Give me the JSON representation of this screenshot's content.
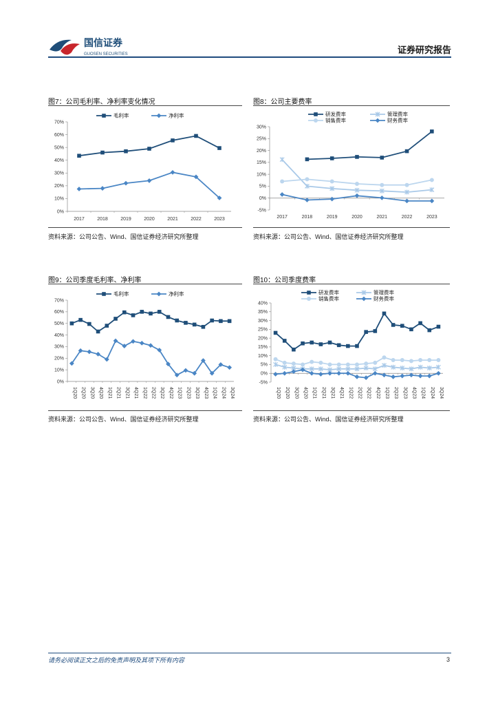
{
  "header": {
    "logo_cn": "国信证券",
    "logo_en": "GUOSEN SECURITIES",
    "report_type": "证券研究报告"
  },
  "colors": {
    "dark": "#1f4e79",
    "mid": "#4a86c5",
    "light": "#a9c9e8",
    "lighter": "#bcd6ee"
  },
  "figures": [
    {
      "title": "图7：公司毛利率、净利率变化情况",
      "source": "资料来源：公司公告、Wind、国信证券经济研究所整理",
      "chart_data": {
        "type": "line",
        "x": [
          "2017",
          "2018",
          "2019",
          "2020",
          "2021",
          "2022",
          "2023"
        ],
        "y_ticks": [
          "0%",
          "10%",
          "20%",
          "30%",
          "40%",
          "50%",
          "60%",
          "70%"
        ],
        "ylim": [
          0,
          70
        ],
        "series": [
          {
            "name": "毛利率",
            "values": [
              43.5,
              46,
              47,
              49,
              55.5,
              59,
              49.5
            ],
            "color": "#1f4e79",
            "marker": "square"
          },
          {
            "name": "净利率",
            "values": [
              17.5,
              18,
              22,
              24,
              30.5,
              27,
              10.5
            ],
            "color": "#4a86c5",
            "marker": "diamond"
          }
        ]
      }
    },
    {
      "title": "图8：公司主要费率",
      "source": "资料来源：公司公告、Wind、国信证券经济研究所整理",
      "chart_data": {
        "type": "line",
        "x": [
          "2017",
          "2018",
          "2019",
          "2020",
          "2021",
          "2022",
          "2023"
        ],
        "y_ticks": [
          "-5%",
          "0%",
          "5%",
          "10%",
          "15%",
          "20%",
          "25%",
          "30%"
        ],
        "ylim": [
          -5,
          30
        ],
        "series": [
          {
            "name": "研发费率",
            "values": [
              null,
              16.3,
              16.7,
              17.3,
              17,
              19.7,
              28
            ],
            "color": "#1f4e79",
            "marker": "square"
          },
          {
            "name": "管理费率",
            "values": [
              16.2,
              5,
              4,
              3.3,
              3,
              2.5,
              3.5
            ],
            "color": "#a9c9e8",
            "marker": "x"
          },
          {
            "name": "销售费率",
            "values": [
              7,
              7.9,
              7,
              6,
              5.5,
              5.5,
              7.6
            ],
            "color": "#bcd6ee",
            "marker": "circle"
          },
          {
            "name": "财务费率",
            "values": [
              1.5,
              -0.8,
              -0.4,
              1,
              0.1,
              -1.2,
              -1.2
            ],
            "color": "#4a86c5",
            "marker": "diamond"
          }
        ]
      }
    },
    {
      "title": "图9：公司季度毛利率、净利率",
      "source": "资料来源：公司公告、Wind、国信证券经济研究所整理",
      "chart_data": {
        "type": "line",
        "x": [
          "1Q20",
          "2Q20",
          "3Q20",
          "4Q20",
          "1Q21",
          "2Q21",
          "3Q21",
          "4Q21",
          "1Q22",
          "2Q22",
          "3Q22",
          "4Q22",
          "1Q23",
          "2Q23",
          "3Q23",
          "4Q23",
          "1Q24",
          "2Q24",
          "3Q24"
        ],
        "y_ticks": [
          "0%",
          "10%",
          "20%",
          "30%",
          "40%",
          "50%",
          "60%",
          "70%"
        ],
        "ylim": [
          0,
          70
        ],
        "series": [
          {
            "name": "毛利率",
            "values": [
              50,
              53,
              49.5,
              43,
              48,
              54,
              59.5,
              57,
              60,
              58.5,
              60,
              55.5,
              52.5,
              50.5,
              49,
              47,
              52.5,
              52,
              52
            ],
            "color": "#1f4e79",
            "marker": "square"
          },
          {
            "name": "净利率",
            "values": [
              15.5,
              26.5,
              25.5,
              23.5,
              19,
              35,
              30.5,
              34.5,
              33,
              31,
              27,
              15,
              5.5,
              9.5,
              7,
              18,
              7,
              14.5,
              12
            ],
            "color": "#4a86c5",
            "marker": "diamond"
          }
        ]
      }
    },
    {
      "title": "图10：公司季度费率",
      "source": "资料来源：公司公告、Wind、国信证券经济研究所整理",
      "chart_data": {
        "type": "line",
        "x": [
          "1Q20",
          "2Q20",
          "3Q20",
          "4Q20",
          "1Q21",
          "2Q21",
          "3Q21",
          "4Q21",
          "1Q22",
          "2Q22",
          "3Q22",
          "4Q22",
          "1Q23",
          "2Q23",
          "3Q23",
          "4Q23",
          "1Q24",
          "2Q24",
          "3Q24"
        ],
        "y_ticks": [
          "-5%",
          "0%",
          "5%",
          "10%",
          "15%",
          "20%",
          "25%",
          "30%",
          "35%",
          "40%"
        ],
        "ylim": [
          -5,
          40
        ],
        "series": [
          {
            "name": "研发费率",
            "values": [
              23,
              18.5,
              13.5,
              17,
              17.5,
              16.5,
              17.5,
              16,
              15.5,
              15.5,
              23.5,
              24,
              34,
              27.5,
              27,
              25,
              28.5,
              24.5,
              26.5
            ],
            "color": "#1f4e79",
            "marker": "square"
          },
          {
            "name": "管理费率",
            "values": [
              5,
              3.5,
              3,
              2.5,
              2.5,
              2.5,
              2,
              2.5,
              2.5,
              2.5,
              3,
              2.5,
              4.5,
              3.5,
              3,
              2.5,
              3.5,
              3,
              3.5
            ],
            "color": "#a9c9e8",
            "marker": "x"
          },
          {
            "name": "销售费率",
            "values": [
              8,
              6,
              5.5,
              5,
              6.5,
              6,
              5,
              5,
              5,
              5,
              5.5,
              6,
              9,
              7.5,
              7.5,
              7,
              7.5,
              7.5,
              7.5
            ],
            "color": "#bcd6ee",
            "marker": "circle"
          },
          {
            "name": "财务费率",
            "values": [
              -0.5,
              0,
              1,
              2,
              0,
              -0.5,
              0,
              0,
              0,
              -2,
              -2.5,
              0,
              -1,
              -2,
              -1.5,
              -1,
              -1.5,
              -1.5,
              0
            ],
            "color": "#4a86c5",
            "marker": "diamond"
          }
        ]
      }
    }
  ],
  "footer": {
    "disclaimer": "请务必阅读正文之后的免责声明及其项下所有内容",
    "page": "3"
  }
}
